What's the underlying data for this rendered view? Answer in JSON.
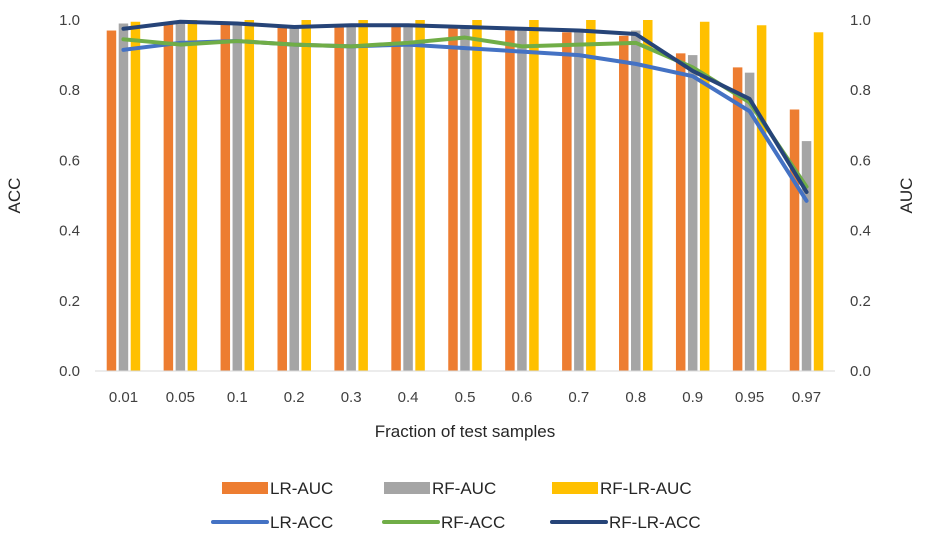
{
  "chart_data": {
    "type": "bar",
    "categories": [
      "0.01",
      "0.05",
      "0.1",
      "0.2",
      "0.3",
      "0.4",
      "0.5",
      "0.6",
      "0.7",
      "0.8",
      "0.9",
      "0.95",
      "0.97"
    ],
    "xlabel": "Fraction of test samples",
    "ylabel": "ACC",
    "y2label": "AUC",
    "ylim": [
      0,
      1.0
    ],
    "y2lim": [
      0,
      1.0
    ],
    "yticks": [
      "0.0",
      "0.2",
      "0.4",
      "0.6",
      "0.8",
      "1.0"
    ],
    "y2ticks": [
      "0.0",
      "0.2",
      "0.4",
      "0.6",
      "0.8",
      "1.0"
    ],
    "grid": false,
    "legend_position": "bottom",
    "series": [
      {
        "name": "LR-AUC",
        "kind": "bar",
        "axis": "right",
        "color": "#ED7D31",
        "values": [
          0.97,
          0.99,
          0.99,
          0.985,
          0.985,
          0.985,
          0.98,
          0.97,
          0.965,
          0.955,
          0.905,
          0.865,
          0.745
        ]
      },
      {
        "name": "RF-AUC",
        "kind": "bar",
        "axis": "right",
        "color": "#A5A5A5",
        "values": [
          0.99,
          0.995,
          0.99,
          0.985,
          0.99,
          0.985,
          0.985,
          0.98,
          0.975,
          0.97,
          0.9,
          0.85,
          0.655
        ]
      },
      {
        "name": "RF-LR-AUC",
        "kind": "bar",
        "axis": "right",
        "color": "#FFC000",
        "values": [
          0.995,
          1.0,
          1.0,
          1.0,
          1.0,
          1.0,
          1.0,
          1.0,
          1.0,
          1.0,
          0.995,
          0.985,
          0.965
        ]
      },
      {
        "name": "LR-ACC",
        "kind": "line",
        "axis": "left",
        "color": "#4472C4",
        "values": [
          0.915,
          0.935,
          0.94,
          0.93,
          0.925,
          0.93,
          0.92,
          0.91,
          0.9,
          0.875,
          0.84,
          0.74,
          0.485
        ]
      },
      {
        "name": "RF-ACC",
        "kind": "line",
        "axis": "left",
        "color": "#70AD47",
        "values": [
          0.945,
          0.93,
          0.94,
          0.93,
          0.925,
          0.935,
          0.95,
          0.925,
          0.93,
          0.935,
          0.865,
          0.765,
          0.525
        ]
      },
      {
        "name": "RF-LR-ACC",
        "kind": "line",
        "axis": "left",
        "color": "#264478",
        "values": [
          0.975,
          0.995,
          0.99,
          0.98,
          0.985,
          0.985,
          0.98,
          0.975,
          0.97,
          0.96,
          0.855,
          0.775,
          0.51
        ]
      }
    ]
  }
}
